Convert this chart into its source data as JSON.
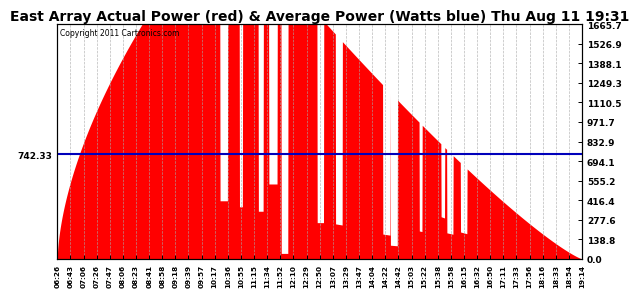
{
  "title": "East Array Actual Power (red) & Average Power (Watts blue) Thu Aug 11 19:31",
  "copyright": "Copyright 2011 Cartronics.com",
  "avg_power": 742.33,
  "y_max": 1665.7,
  "y_min": 0.0,
  "y_ticks": [
    0.0,
    138.8,
    277.6,
    416.4,
    555.2,
    694.1,
    832.9,
    971.7,
    1110.5,
    1249.3,
    1388.1,
    1526.9,
    1665.7
  ],
  "background_color": "#ffffff",
  "fill_color": "#ff0000",
  "avg_line_color": "#0000bb",
  "title_fontsize": 10,
  "grid_color": "#aaaaaa",
  "x_tick_labels": [
    "06:26",
    "06:43",
    "07:06",
    "07:26",
    "07:47",
    "08:06",
    "08:23",
    "08:41",
    "08:58",
    "09:18",
    "09:39",
    "09:57",
    "10:17",
    "10:36",
    "10:55",
    "11:15",
    "11:34",
    "11:52",
    "12:10",
    "12:29",
    "12:50",
    "13:07",
    "13:29",
    "13:47",
    "14:04",
    "14:22",
    "14:42",
    "15:03",
    "15:22",
    "15:38",
    "15:58",
    "16:15",
    "16:32",
    "16:50",
    "17:11",
    "17:33",
    "17:56",
    "18:16",
    "18:33",
    "18:54",
    "19:14"
  ]
}
